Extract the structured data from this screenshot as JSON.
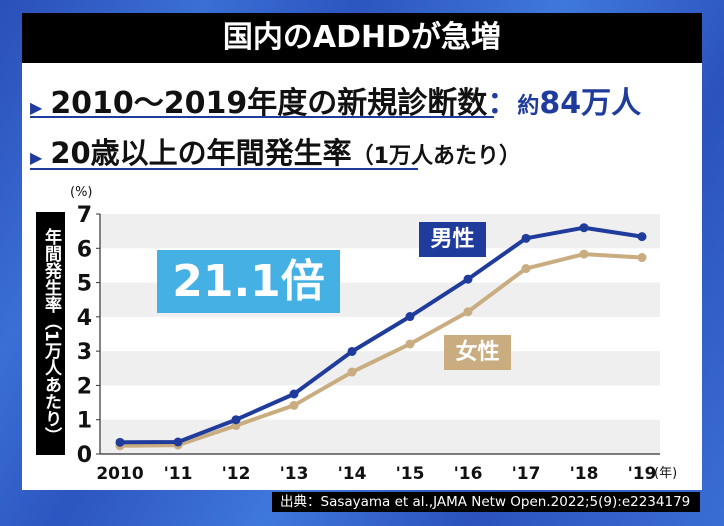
{
  "title": "国内のADHDが急増",
  "line1": {
    "label": "2010～2019年度の新規診断数",
    "sep": "：",
    "prefix": "約",
    "value": "84万人"
  },
  "line2": {
    "label": "20歳以上の年間発生率",
    "paren": "（1万人あたり）"
  },
  "source": "出典：Sasayama et al.,JAMA Netw Open.2022;5(9):e2234179",
  "annotation": "21.1倍",
  "chart_data": {
    "type": "line",
    "ylabel": "年間発生率（1万人あたり）",
    "yunit": "(%)",
    "xunit": "(年)",
    "categories": [
      "2010",
      "'11",
      "'12",
      "'13",
      "'14",
      "'15",
      "'16",
      "'17",
      "'18",
      "'19"
    ],
    "ylim": [
      0,
      7
    ],
    "yticks": [
      "0",
      "1",
      "2",
      "3",
      "4",
      "5",
      "6",
      "7"
    ],
    "grid": "alternating horizontal bands",
    "series": [
      {
        "name": "男性",
        "color": "#1f3b9c",
        "values": [
          0.34,
          0.35,
          1.0,
          1.75,
          2.99,
          4.01,
          5.1,
          6.29,
          6.6,
          6.34
        ]
      },
      {
        "name": "女性",
        "color": "#c9ad80",
        "values": [
          0.24,
          0.26,
          0.83,
          1.42,
          2.39,
          3.21,
          4.15,
          5.41,
          5.83,
          5.73
        ]
      }
    ]
  }
}
